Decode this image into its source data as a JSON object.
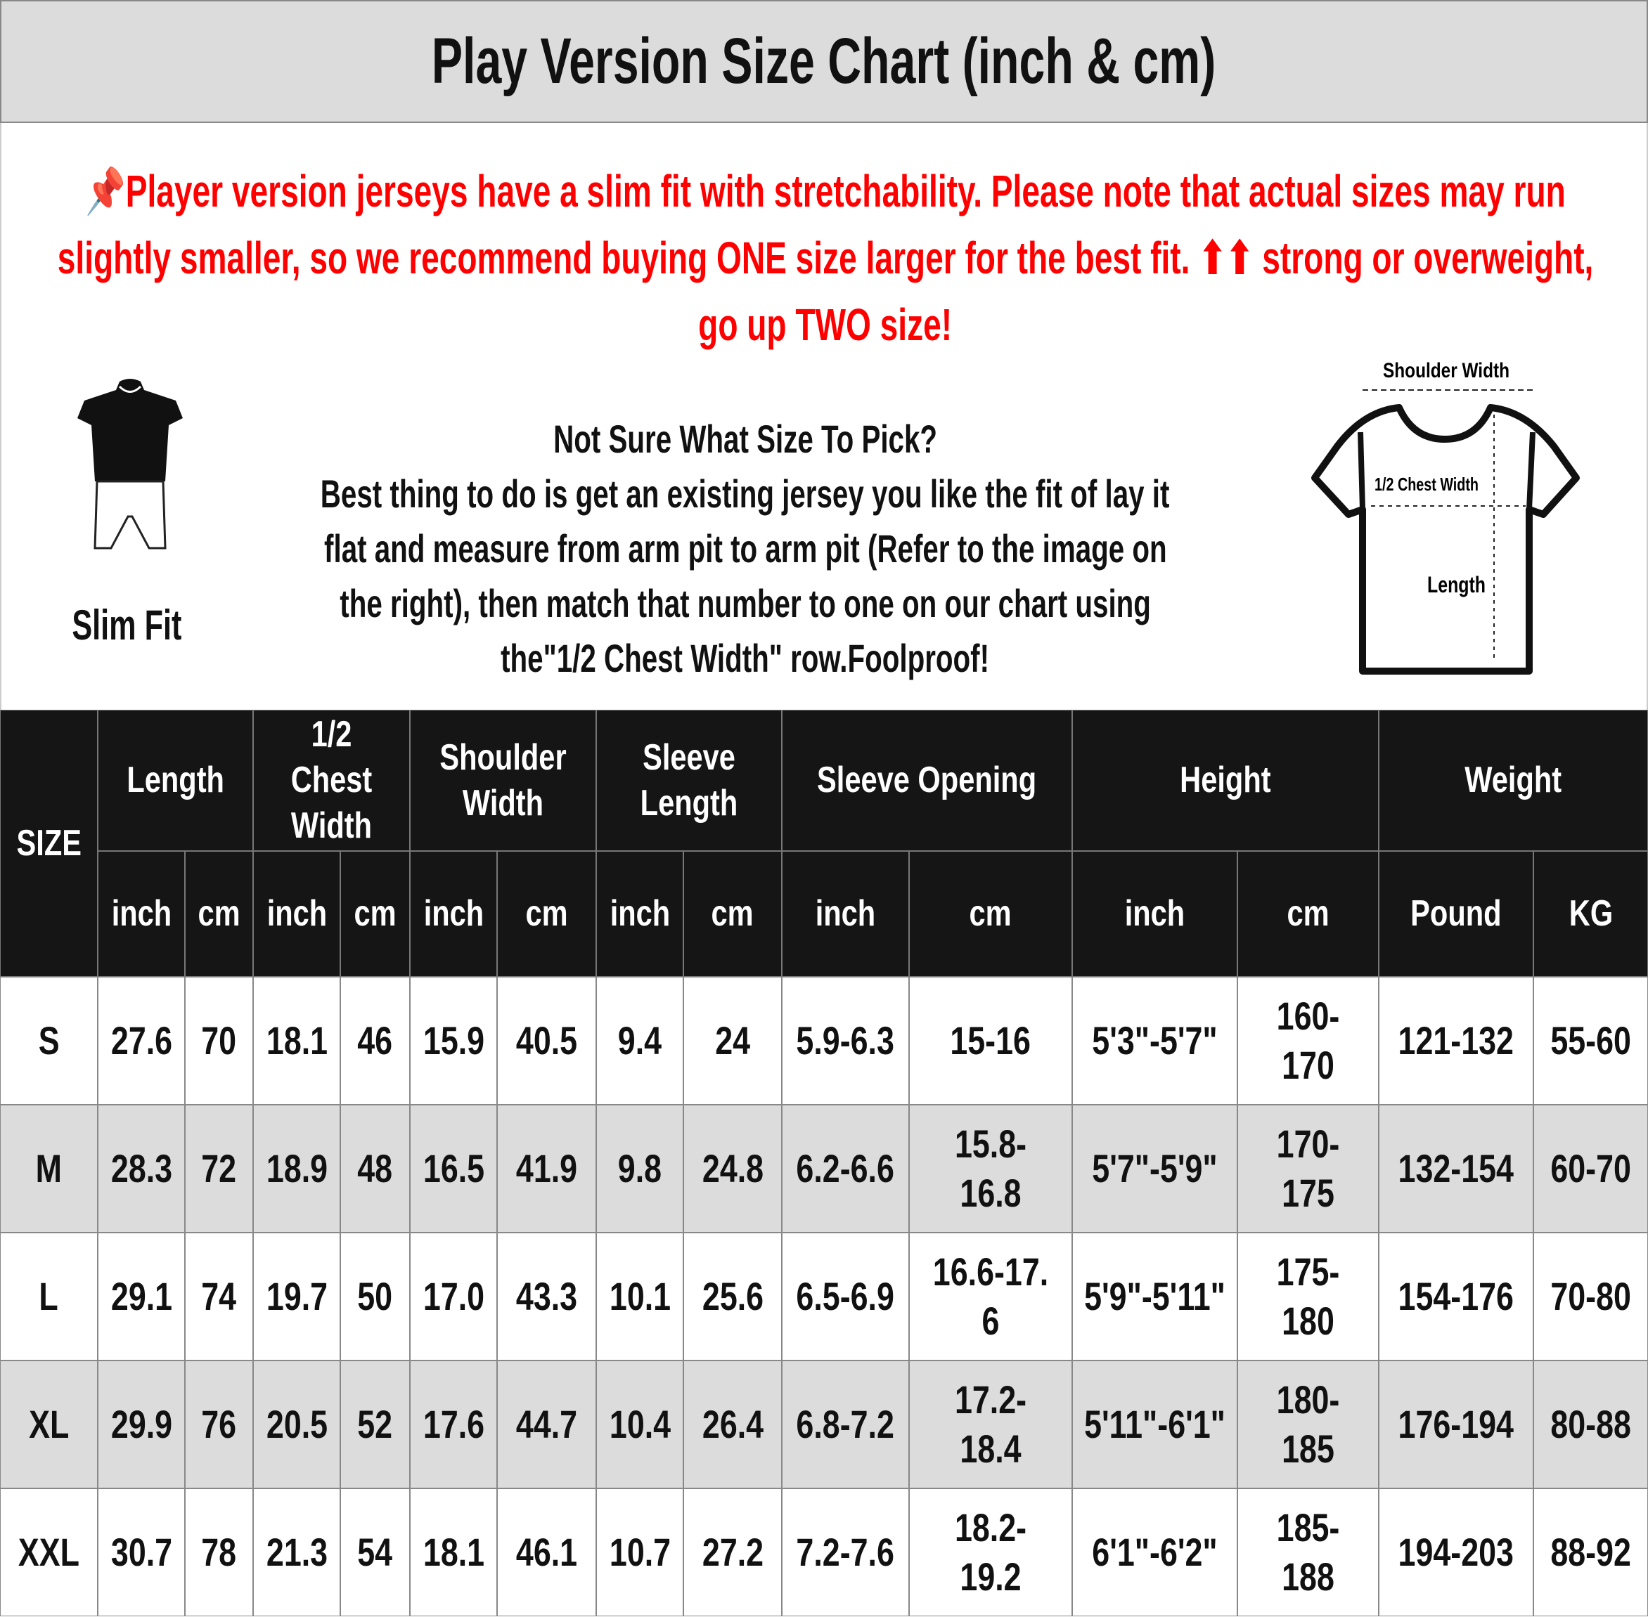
{
  "title": "Play Version Size Chart (inch & cm)",
  "notice": {
    "icon": "pushpin-icon",
    "color": "#ff0000",
    "lines": [
      "Player version jerseys have a slim fit with stretchability. Please note that actual sizes may run",
      "slightly smaller, so we recommend buying ONE size larger for the best fit. ⬆⬆ strong or overweight,",
      "go up TWO size!"
    ]
  },
  "slim_fit": {
    "label": "Slim Fit"
  },
  "help": {
    "lines": [
      "Not Sure What Size To Pick?",
      "Best thing to do is get an existing jersey you like the fit of lay it",
      "flat and measure from arm pit to arm pit (Refer to the image on",
      "the right), then match that number to one on our chart using",
      "the\"1/2 Chest Width\" row.Foolproof!"
    ]
  },
  "diagram": {
    "shoulder": "Shoulder Width",
    "chest": "1/2 Chest Width",
    "length": "Length"
  },
  "table": {
    "size_header": "SIZE",
    "groups": [
      {
        "label": "Length",
        "subs": [
          "inch",
          "cm"
        ]
      },
      {
        "label": "1/2 Chest Width",
        "subs": [
          "inch",
          "cm"
        ]
      },
      {
        "label": "Shoulder Width",
        "subs": [
          "inch",
          "cm"
        ]
      },
      {
        "label": "Sleeve Length",
        "subs": [
          "inch",
          "cm"
        ]
      },
      {
        "label": "Sleeve Opening",
        "subs": [
          "inch",
          "cm"
        ]
      },
      {
        "label": "Height",
        "subs": [
          "inch",
          "cm"
        ]
      },
      {
        "label": "Weight",
        "subs": [
          "Pound",
          "KG"
        ]
      }
    ],
    "rows": [
      [
        "S",
        "27.6",
        "70",
        "18.1",
        "46",
        "15.9",
        "40.5",
        "9.4",
        "24",
        "5.9-6.3",
        "15-16",
        "5'3\"-5'7\"",
        "160-170",
        "121-132",
        "55-60"
      ],
      [
        "M",
        "28.3",
        "72",
        "18.9",
        "48",
        "16.5",
        "41.9",
        "9.8",
        "24.8",
        "6.2-6.6",
        "15.8-16.8",
        "5'7\"-5'9\"",
        "170-175",
        "132-154",
        "60-70"
      ],
      [
        "L",
        "29.1",
        "74",
        "19.7",
        "50",
        "17.0",
        "43.3",
        "10.1",
        "25.6",
        "6.5-6.9",
        "16.6-17. 6",
        "5'9\"-5'11\"",
        "175-180",
        "154-176",
        "70-80"
      ],
      [
        "XL",
        "29.9",
        "76",
        "20.5",
        "52",
        "17.6",
        "44.7",
        "10.4",
        "26.4",
        "6.8-7.2",
        "17.2-18.4",
        "5'11\"-6'1\"",
        "180-185",
        "176-194",
        "80-88"
      ],
      [
        "XXL",
        "30.7",
        "78",
        "21.3",
        "54",
        "18.1",
        "46.1",
        "10.7",
        "27.2",
        "7.2-7.6",
        "18.2-19.2",
        "6'1\"-6'2\"",
        "185-188",
        "194-203",
        "88-92"
      ]
    ],
    "row_colors": [
      "#ffffff",
      "#dcdcdc",
      "#ffffff",
      "#dcdcdc",
      "#ffffff"
    ]
  }
}
